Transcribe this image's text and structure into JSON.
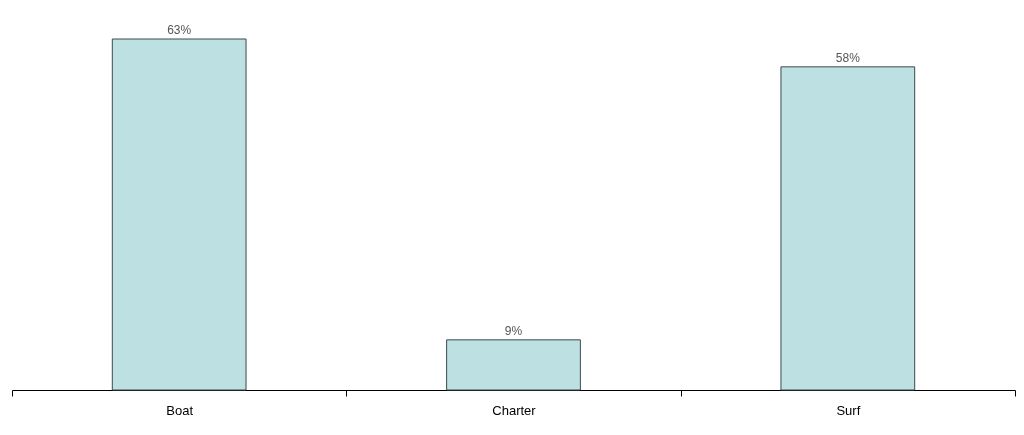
{
  "chart_data": {
    "type": "bar",
    "categories": [
      "Boat",
      "Charter",
      "Surf"
    ],
    "values": [
      63,
      9,
      58
    ],
    "value_labels": [
      "63%",
      "9%",
      "58%"
    ],
    "color": "#bde0e3",
    "grid": false
  }
}
